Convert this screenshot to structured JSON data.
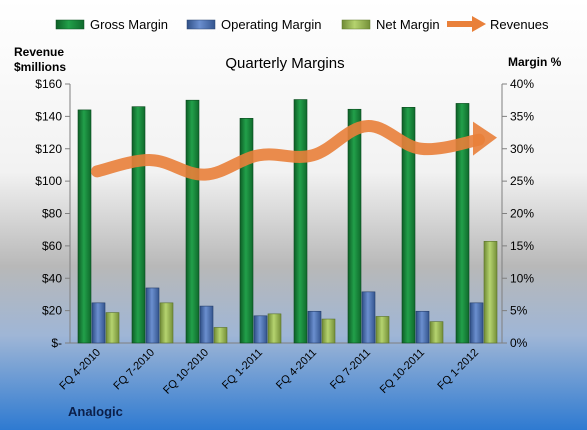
{
  "chart_data": {
    "type": "bar",
    "title": "Quarterly Margins",
    "company": "Analogic",
    "left_axis": {
      "label_line1": "Revenue",
      "label_line2": "$millions",
      "min": 0,
      "max": 160,
      "step": 20,
      "ticks": [
        "$-",
        "$20",
        "$40",
        "$60",
        "$80",
        "$100",
        "$120",
        "$140",
        "$160"
      ]
    },
    "right_axis": {
      "label": "Margin %",
      "min": 0,
      "max": 40,
      "step": 5,
      "ticks": [
        "0%",
        "5%",
        "10%",
        "15%",
        "20%",
        "25%",
        "30%",
        "35%",
        "40%"
      ]
    },
    "categories": [
      "FQ 4-2010",
      "FQ 7-2010",
      "FQ 10-2010",
      "FQ 1-2011",
      "FQ 4-2011",
      "FQ 7-2011",
      "FQ 10-2011",
      "FQ 1-2012"
    ],
    "series": [
      {
        "name": "Gross Margin",
        "axis": "right",
        "kind": "bar",
        "color": "#1f8a3c",
        "values": [
          36.0,
          36.5,
          37.5,
          34.7,
          37.6,
          36.1,
          36.4,
          37.0
        ]
      },
      {
        "name": "Operating Margin",
        "axis": "right",
        "kind": "bar",
        "color": "#4f74b3",
        "values": [
          6.2,
          8.5,
          5.7,
          4.2,
          4.9,
          7.9,
          4.9,
          6.2
        ]
      },
      {
        "name": "Net Margin",
        "axis": "right",
        "kind": "bar",
        "color": "#9bbb59",
        "values": [
          4.7,
          6.2,
          2.4,
          4.5,
          3.7,
          4.1,
          3.3,
          15.7
        ]
      },
      {
        "name": "Revenues",
        "axis": "left",
        "kind": "line",
        "color": "#e9803a",
        "values": [
          106,
          113,
          104,
          116,
          116,
          134,
          120,
          125
        ]
      }
    ],
    "legend_position": "top",
    "grid": false
  }
}
